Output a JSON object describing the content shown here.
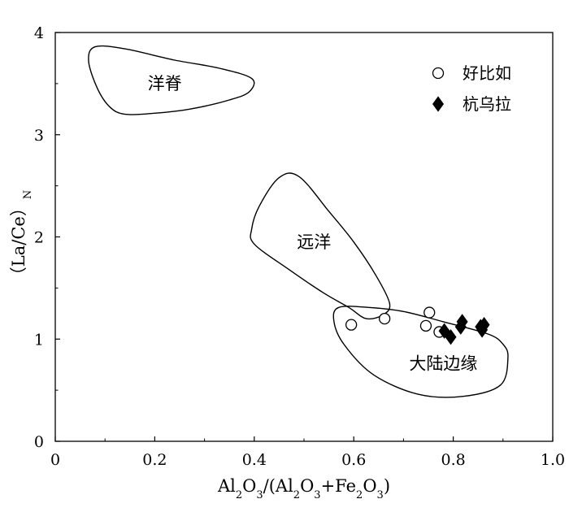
{
  "chart_data": {
    "type": "scatter",
    "xlabel": {
      "parts": [
        {
          "t": "Al",
          "sub": false
        },
        {
          "t": "2",
          "sub": true
        },
        {
          "t": "O",
          "sub": false
        },
        {
          "t": "3",
          "sub": true
        },
        {
          "t": "/(Al",
          "sub": false
        },
        {
          "t": "2",
          "sub": true
        },
        {
          "t": "O",
          "sub": false
        },
        {
          "t": "3",
          "sub": true
        },
        {
          "t": "+Fe",
          "sub": false
        },
        {
          "t": "2",
          "sub": true
        },
        {
          "t": "O",
          "sub": false
        },
        {
          "t": "3",
          "sub": true
        },
        {
          "t": ")",
          "sub": false
        }
      ]
    },
    "ylabel": {
      "parts": [
        {
          "t": "（La/Ce）",
          "sub": false
        },
        {
          "t": "N",
          "sub": true
        }
      ]
    },
    "xlim": [
      0,
      1.0
    ],
    "ylim": [
      0,
      4
    ],
    "xticks": [
      0,
      0.2,
      0.4,
      0.6,
      0.8,
      1.0
    ],
    "xtick_labels": [
      "0",
      "0.2",
      "0.4",
      "0.6",
      "0.8",
      "1.0"
    ],
    "yticks": [
      0,
      1,
      2,
      3,
      4
    ],
    "ytick_labels": [
      "0",
      "1",
      "2",
      "3",
      "4"
    ],
    "grid": false,
    "legend_position": "top-right",
    "series": [
      {
        "name": "好比如",
        "marker": "open-circle",
        "color": "#000000",
        "points": [
          [
            0.595,
            1.14
          ],
          [
            0.662,
            1.2
          ],
          [
            0.745,
            1.13
          ],
          [
            0.752,
            1.26
          ],
          [
            0.772,
            1.07
          ]
        ]
      },
      {
        "name": "杭乌拉",
        "marker": "filled-diamond",
        "color": "#000000",
        "points": [
          [
            0.782,
            1.08
          ],
          [
            0.795,
            1.02
          ],
          [
            0.815,
            1.12
          ],
          [
            0.818,
            1.17
          ],
          [
            0.855,
            1.12
          ],
          [
            0.858,
            1.09
          ],
          [
            0.862,
            1.14
          ]
        ]
      }
    ],
    "regions": [
      {
        "label": "洋脊",
        "label_at": [
          0.22,
          3.5
        ],
        "outline": [
          [
            0.14,
            3.84
          ],
          [
            0.24,
            3.73
          ],
          [
            0.33,
            3.65
          ],
          [
            0.395,
            3.55
          ],
          [
            0.39,
            3.42
          ],
          [
            0.35,
            3.34
          ],
          [
            0.27,
            3.25
          ],
          [
            0.2,
            3.21
          ],
          [
            0.14,
            3.2
          ],
          [
            0.11,
            3.27
          ],
          [
            0.085,
            3.45
          ],
          [
            0.067,
            3.72
          ],
          [
            0.08,
            3.86
          ]
        ]
      },
      {
        "label": "远洋",
        "label_at": [
          0.52,
          1.95
        ],
        "outline": [
          [
            0.45,
            2.58
          ],
          [
            0.49,
            2.59
          ],
          [
            0.55,
            2.25
          ],
          [
            0.6,
            1.95
          ],
          [
            0.645,
            1.62
          ],
          [
            0.672,
            1.35
          ],
          [
            0.66,
            1.24
          ],
          [
            0.625,
            1.2
          ],
          [
            0.59,
            1.31
          ],
          [
            0.54,
            1.45
          ],
          [
            0.47,
            1.68
          ],
          [
            0.4,
            1.93
          ],
          [
            0.395,
            2.08
          ],
          [
            0.41,
            2.3
          ]
        ]
      },
      {
        "label": "大陆边缘",
        "label_at": [
          0.78,
          0.76
        ],
        "outline": [
          [
            0.57,
            1.31
          ],
          [
            0.63,
            1.31
          ],
          [
            0.7,
            1.27
          ],
          [
            0.78,
            1.17
          ],
          [
            0.87,
            1.05
          ],
          [
            0.9,
            0.95
          ],
          [
            0.91,
            0.82
          ],
          [
            0.895,
            0.55
          ],
          [
            0.82,
            0.44
          ],
          [
            0.73,
            0.46
          ],
          [
            0.64,
            0.65
          ],
          [
            0.58,
            0.95
          ],
          [
            0.56,
            1.18
          ]
        ]
      }
    ]
  }
}
